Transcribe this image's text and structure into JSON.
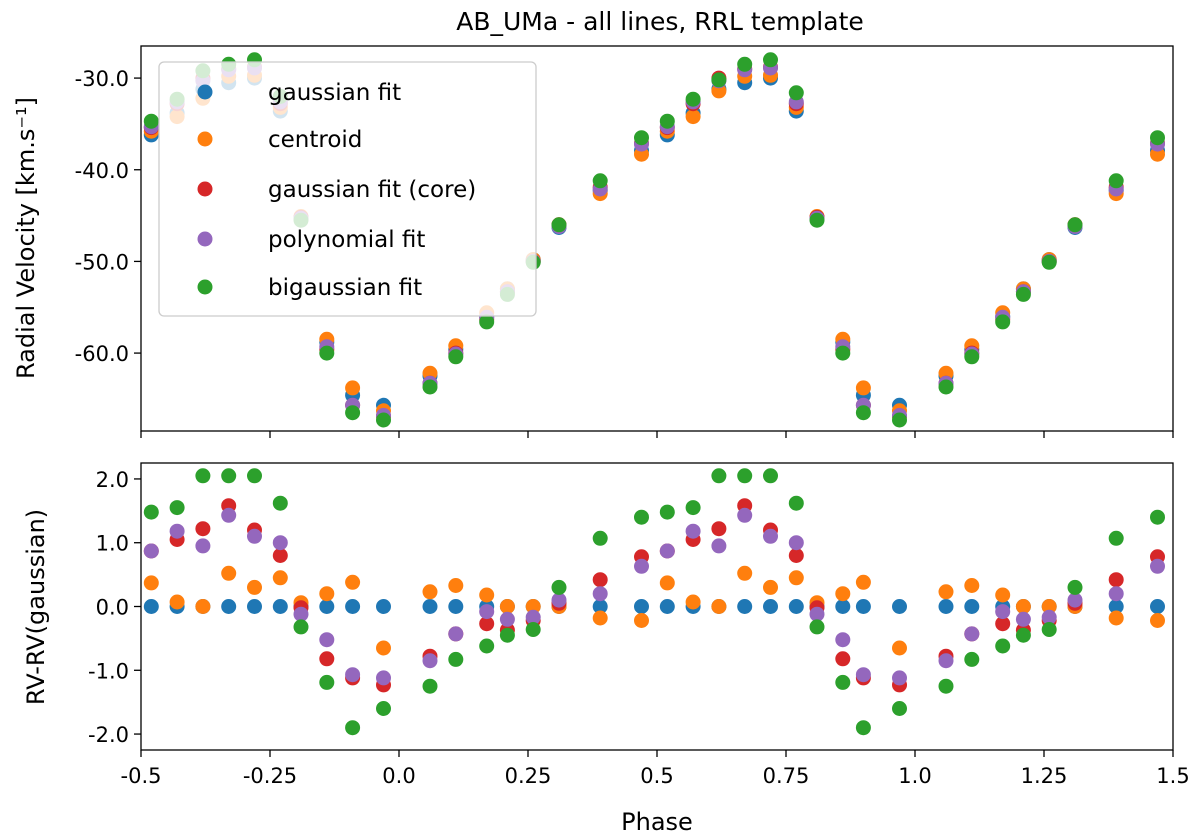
{
  "chart_data": [
    {
      "type": "scatter",
      "title": "AB_UMa - all lines, RRL template",
      "xlabel": "",
      "ylabel": "Radial Velocity [km.s⁻¹]",
      "xlim": [
        -0.5,
        1.5
      ],
      "ylim": [
        -68.5,
        -26.5
      ],
      "yticks": [
        -30,
        -40,
        -50,
        -60
      ],
      "yticklabels": [
        "-30.0",
        "-40.0",
        "-50.0",
        "-60.0"
      ],
      "grid": false,
      "legend_position": "upper-left",
      "phase": [
        -0.48,
        -0.43,
        -0.38,
        -0.33,
        -0.28,
        -0.23,
        -0.19,
        -0.14,
        -0.09,
        -0.03,
        0.06,
        0.11,
        0.17,
        0.21,
        0.26,
        0.31,
        0.39,
        0.47,
        0.52,
        0.57,
        0.62,
        0.67,
        0.72,
        0.77,
        0.81,
        0.86,
        0.9,
        0.97,
        1.06,
        1.11,
        1.17,
        1.21,
        1.26,
        1.31,
        1.39,
        1.47
      ],
      "series": [
        {
          "name": "gaussian fit",
          "color": "#1f77b4",
          "values": [
            -36.2,
            -33.8,
            -31.2,
            -30.5,
            -30.0,
            -33.6,
            -45.2,
            -58.8,
            -64.6,
            -65.7,
            -62.5,
            -59.6,
            -56.0,
            -53.0,
            -49.8,
            -46.3,
            -42.3,
            -37.9,
            -36.2,
            -33.8,
            -31.2,
            -30.5,
            -30.0,
            -33.6,
            -45.2,
            -58.8,
            -64.6,
            -65.7,
            -62.5,
            -59.6,
            -56.0,
            -53.0,
            -49.8,
            -46.3,
            -42.3,
            -37.9
          ]
        },
        {
          "name": "centroid",
          "color": "#ff7f0e",
          "values": [
            -35.8,
            -34.2,
            -32.2,
            -29.8,
            -29.7,
            -33.2,
            -45.1,
            -58.5,
            -63.8,
            -66.3,
            -62.2,
            -59.2,
            -55.6,
            -53.0,
            -49.8,
            -46.0,
            -42.6,
            -38.3,
            -35.8,
            -34.2,
            -31.4,
            -29.8,
            -29.7,
            -33.2,
            -45.1,
            -58.5,
            -63.8,
            -66.3,
            -62.2,
            -59.2,
            -55.6,
            -53.0,
            -49.8,
            -46.0,
            -42.6,
            -38.3
          ]
        },
        {
          "name": "gaussian fit (core)",
          "color": "#d62728",
          "values": [
            -35.4,
            -32.8,
            -30.0,
            -29.0,
            -28.8,
            -32.8,
            -45.2,
            -59.6,
            -65.7,
            -66.9,
            -63.3,
            -60.0,
            -56.3,
            -53.3,
            -50.0,
            -46.0,
            -41.9,
            -37.1,
            -35.4,
            -32.8,
            -30.0,
            -29.0,
            -28.8,
            -32.8,
            -45.2,
            -59.6,
            -65.7,
            -66.9,
            -63.3,
            -60.0,
            -56.3,
            -53.3,
            -50.0,
            -46.0,
            -41.9,
            -37.1
          ]
        },
        {
          "name": "polynomial fit",
          "color": "#9467bd",
          "values": [
            -35.3,
            -32.6,
            -30.3,
            -29.1,
            -28.9,
            -32.6,
            -45.3,
            -59.3,
            -65.7,
            -66.8,
            -63.3,
            -60.1,
            -56.1,
            -53.3,
            -50.0,
            -46.2,
            -42.1,
            -37.2,
            -35.3,
            -32.6,
            -30.3,
            -29.1,
            -28.9,
            -32.6,
            -45.3,
            -59.3,
            -65.7,
            -66.8,
            -63.3,
            -60.1,
            -56.1,
            -53.3,
            -50.0,
            -46.2,
            -42.1,
            -37.2
          ]
        },
        {
          "name": "bigaussian fit",
          "color": "#2ca02c",
          "values": [
            -34.7,
            -32.3,
            -29.2,
            -28.5,
            -28.0,
            -32.0,
            -45.5,
            -60.0,
            -66.5,
            -67.3,
            -63.7,
            -60.4,
            -56.6,
            -53.6,
            -50.1,
            -46.0,
            -41.2,
            -36.5,
            -34.7,
            -32.3,
            -30.2,
            -28.5,
            -28.0,
            -31.6,
            -45.5,
            -60.0,
            -66.5,
            -67.3,
            -63.7,
            -60.4,
            -56.6,
            -53.6,
            -50.1,
            -46.0,
            -41.2,
            -36.5
          ]
        }
      ]
    },
    {
      "type": "scatter",
      "title": "",
      "xlabel": "Phase",
      "ylabel": "RV-RV(gaussian)",
      "xlim": [
        -0.5,
        1.5
      ],
      "ylim": [
        -2.25,
        2.25
      ],
      "xticks": [
        -0.5,
        -0.25,
        0.0,
        0.25,
        0.5,
        0.75,
        1.0,
        1.25,
        1.5
      ],
      "xticklabels": [
        "-0.5",
        "-0.25",
        "0.0",
        "0.25",
        "0.5",
        "0.75",
        "1.0",
        "1.25",
        "1.5"
      ],
      "yticks": [
        2,
        1,
        0,
        -1,
        -2
      ],
      "yticklabels": [
        "2.0",
        "1.0",
        "0.0",
        "-1.0",
        "-2.0"
      ],
      "grid": false,
      "phase": [
        -0.48,
        -0.43,
        -0.38,
        -0.33,
        -0.28,
        -0.23,
        -0.19,
        -0.14,
        -0.09,
        -0.03,
        0.06,
        0.11,
        0.17,
        0.21,
        0.26,
        0.31,
        0.39,
        0.47,
        0.52,
        0.57,
        0.62,
        0.67,
        0.72,
        0.77,
        0.81,
        0.86,
        0.9,
        0.97,
        1.06,
        1.11,
        1.17,
        1.21,
        1.26,
        1.31,
        1.39,
        1.47
      ],
      "series": [
        {
          "name": "gaussian fit",
          "color": "#1f77b4",
          "values": [
            0,
            0,
            0,
            0,
            0,
            0,
            0,
            0,
            0,
            0,
            0,
            0,
            0,
            0,
            0,
            0,
            0,
            0,
            0,
            0,
            0,
            0,
            0,
            0,
            0,
            0,
            0,
            0,
            0,
            0,
            0,
            0,
            0,
            0,
            0,
            0
          ]
        },
        {
          "name": "centroid",
          "color": "#ff7f0e",
          "values": [
            0.37,
            0.07,
            0.0,
            0.52,
            0.3,
            0.45,
            0.06,
            0.2,
            0.38,
            -0.65,
            0.23,
            0.33,
            0.18,
            0.0,
            0.0,
            0.0,
            -0.18,
            -0.22,
            0.37,
            0.07,
            0.0,
            0.52,
            0.3,
            0.45,
            0.06,
            0.2,
            0.38,
            -0.65,
            0.23,
            0.33,
            0.18,
            0.0,
            0.0,
            0.0,
            -0.18,
            -0.22
          ]
        },
        {
          "name": "gaussian fit (core)",
          "color": "#d62728",
          "values": [
            0.87,
            1.05,
            1.22,
            1.58,
            1.2,
            0.8,
            -0.02,
            -0.82,
            -1.12,
            -1.23,
            -0.78,
            -0.43,
            -0.27,
            -0.37,
            -0.22,
            0.05,
            0.42,
            0.78,
            0.87,
            1.05,
            1.22,
            1.58,
            1.2,
            0.8,
            -0.02,
            -0.82,
            -1.12,
            -1.23,
            -0.78,
            -0.43,
            -0.27,
            -0.37,
            -0.22,
            0.05,
            0.42,
            0.78
          ]
        },
        {
          "name": "polynomial fit",
          "color": "#9467bd",
          "values": [
            0.87,
            1.18,
            0.95,
            1.43,
            1.1,
            1.0,
            -0.12,
            -0.52,
            -1.07,
            -1.12,
            -0.85,
            -0.43,
            -0.08,
            -0.2,
            -0.17,
            0.1,
            0.2,
            0.63,
            0.87,
            1.18,
            0.95,
            1.43,
            1.1,
            1.0,
            -0.12,
            -0.52,
            -1.07,
            -1.12,
            -0.85,
            -0.43,
            -0.08,
            -0.2,
            -0.17,
            0.1,
            0.2,
            0.63
          ]
        },
        {
          "name": "bigaussian fit",
          "color": "#2ca02c",
          "values": [
            1.48,
            1.55,
            2.05,
            2.05,
            2.05,
            1.62,
            -0.32,
            -1.19,
            -1.9,
            -1.6,
            -1.25,
            -0.83,
            -0.62,
            -0.45,
            -0.36,
            0.3,
            1.07,
            1.4,
            1.48,
            1.55,
            2.05,
            2.05,
            2.05,
            1.62,
            -0.32,
            -1.19,
            -1.9,
            -1.6,
            -1.25,
            -0.83,
            -0.62,
            -0.45,
            -0.36,
            0.3,
            1.07,
            1.4
          ]
        }
      ]
    }
  ]
}
